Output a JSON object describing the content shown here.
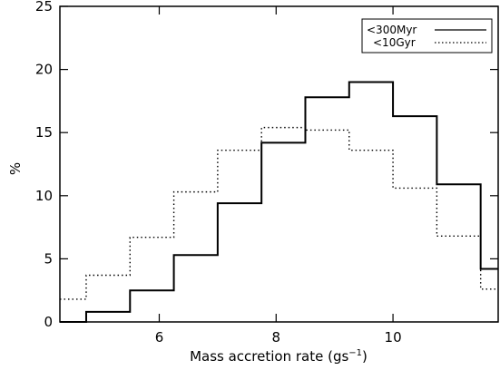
{
  "chart_data": {
    "type": "histogram",
    "xlabel": "Mass accretion rate (gs",
    "xlabel_sup": "−1",
    "xlabel_close": ")",
    "ylabel": "%",
    "xlim": [
      4.3,
      11.8
    ],
    "ylim": [
      0,
      25
    ],
    "xticks": [
      6,
      8,
      10
    ],
    "yticks": [
      0,
      5,
      10,
      15,
      20,
      25
    ],
    "legend_position": "top-right",
    "grid": false,
    "series": [
      {
        "name": "<300Myr",
        "line_style": "solid",
        "bin_edges": [
          4.3,
          4.75,
          5.5,
          6.25,
          7.0,
          7.75,
          8.5,
          9.25,
          10.0,
          10.75,
          11.5,
          11.8
        ],
        "values": [
          0.0,
          0.8,
          2.5,
          5.3,
          9.4,
          14.2,
          17.8,
          19.0,
          16.3,
          10.9,
          4.2
        ]
      },
      {
        "name": "<10Gyr",
        "line_style": "dotted",
        "bin_edges": [
          4.3,
          4.75,
          5.5,
          6.25,
          7.0,
          7.75,
          8.5,
          9.25,
          10.0,
          10.75,
          11.5,
          11.8
        ],
        "values": [
          1.8,
          3.7,
          6.7,
          10.3,
          13.6,
          15.4,
          15.2,
          13.6,
          10.6,
          6.8,
          2.6
        ]
      }
    ]
  }
}
